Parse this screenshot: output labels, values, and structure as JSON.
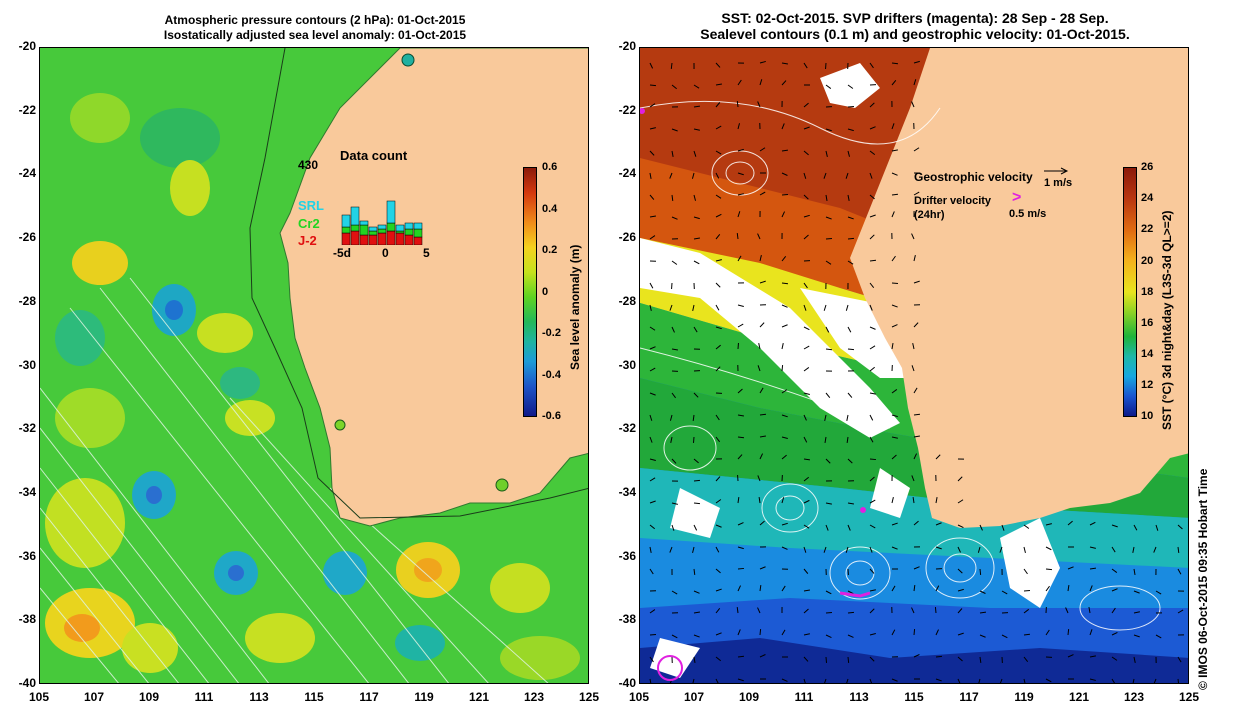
{
  "left_panel": {
    "title_line1": "Atmospheric pressure contours (2 hPa): 01-Oct-2015",
    "title_line2": "Isostatically adjusted sea level anomaly: 01-Oct-2015",
    "colorbar_title": "Sea level anomaly (m)",
    "colorbar_ticks": [
      "0.6",
      "0.4",
      "0.2",
      "0",
      "-0.2",
      "-0.4",
      "-0.6"
    ],
    "data_count": {
      "title": "Data count",
      "max_label": "430",
      "series": [
        "SRL",
        "Cr2",
        "J-2"
      ],
      "series_colors": [
        "#22d3e6",
        "#22d422",
        "#e01010"
      ],
      "x_ticks": [
        "-5d",
        "0",
        "5"
      ]
    }
  },
  "right_panel": {
    "title_line1": "SST: 02-Oct-2015. SVP drifters (magenta): 28 Sep - 28 Sep.",
    "title_line2": "Sealevel contours (0.1 m) and geostrophic velocity: 01-Oct-2015.",
    "geostrophic_label": "Geostrophic velocity",
    "geostrophic_scale": "1 m/s",
    "drifter_label_line1": "Drifter velocity",
    "drifter_label_line2": "(24hr)",
    "drifter_scale": "0.5 m/s",
    "drifter_symbol": ">",
    "colorbar_title": "SST (°C) 3d night&day (L3S-3d QL>=2)",
    "colorbar_ticks": [
      "26",
      "24",
      "22",
      "20",
      "18",
      "16",
      "14",
      "12",
      "10"
    ]
  },
  "axes": {
    "y_ticks": [
      "-20",
      "-22",
      "-24",
      "-26",
      "-28",
      "-30",
      "-32",
      "-34",
      "-36",
      "-38",
      "-40"
    ],
    "x_ticks": [
      "105",
      "107",
      "109",
      "111",
      "113",
      "115",
      "117",
      "119",
      "121",
      "123",
      "125"
    ]
  },
  "credit": "© IMOS 06-Oct-2015 09:35 Hobart Time",
  "colors": {
    "land": "#f9c99b",
    "ocean_green": "#41c83a",
    "sst_warm": "#b23a10",
    "sst_cool": "#1a8be0"
  }
}
